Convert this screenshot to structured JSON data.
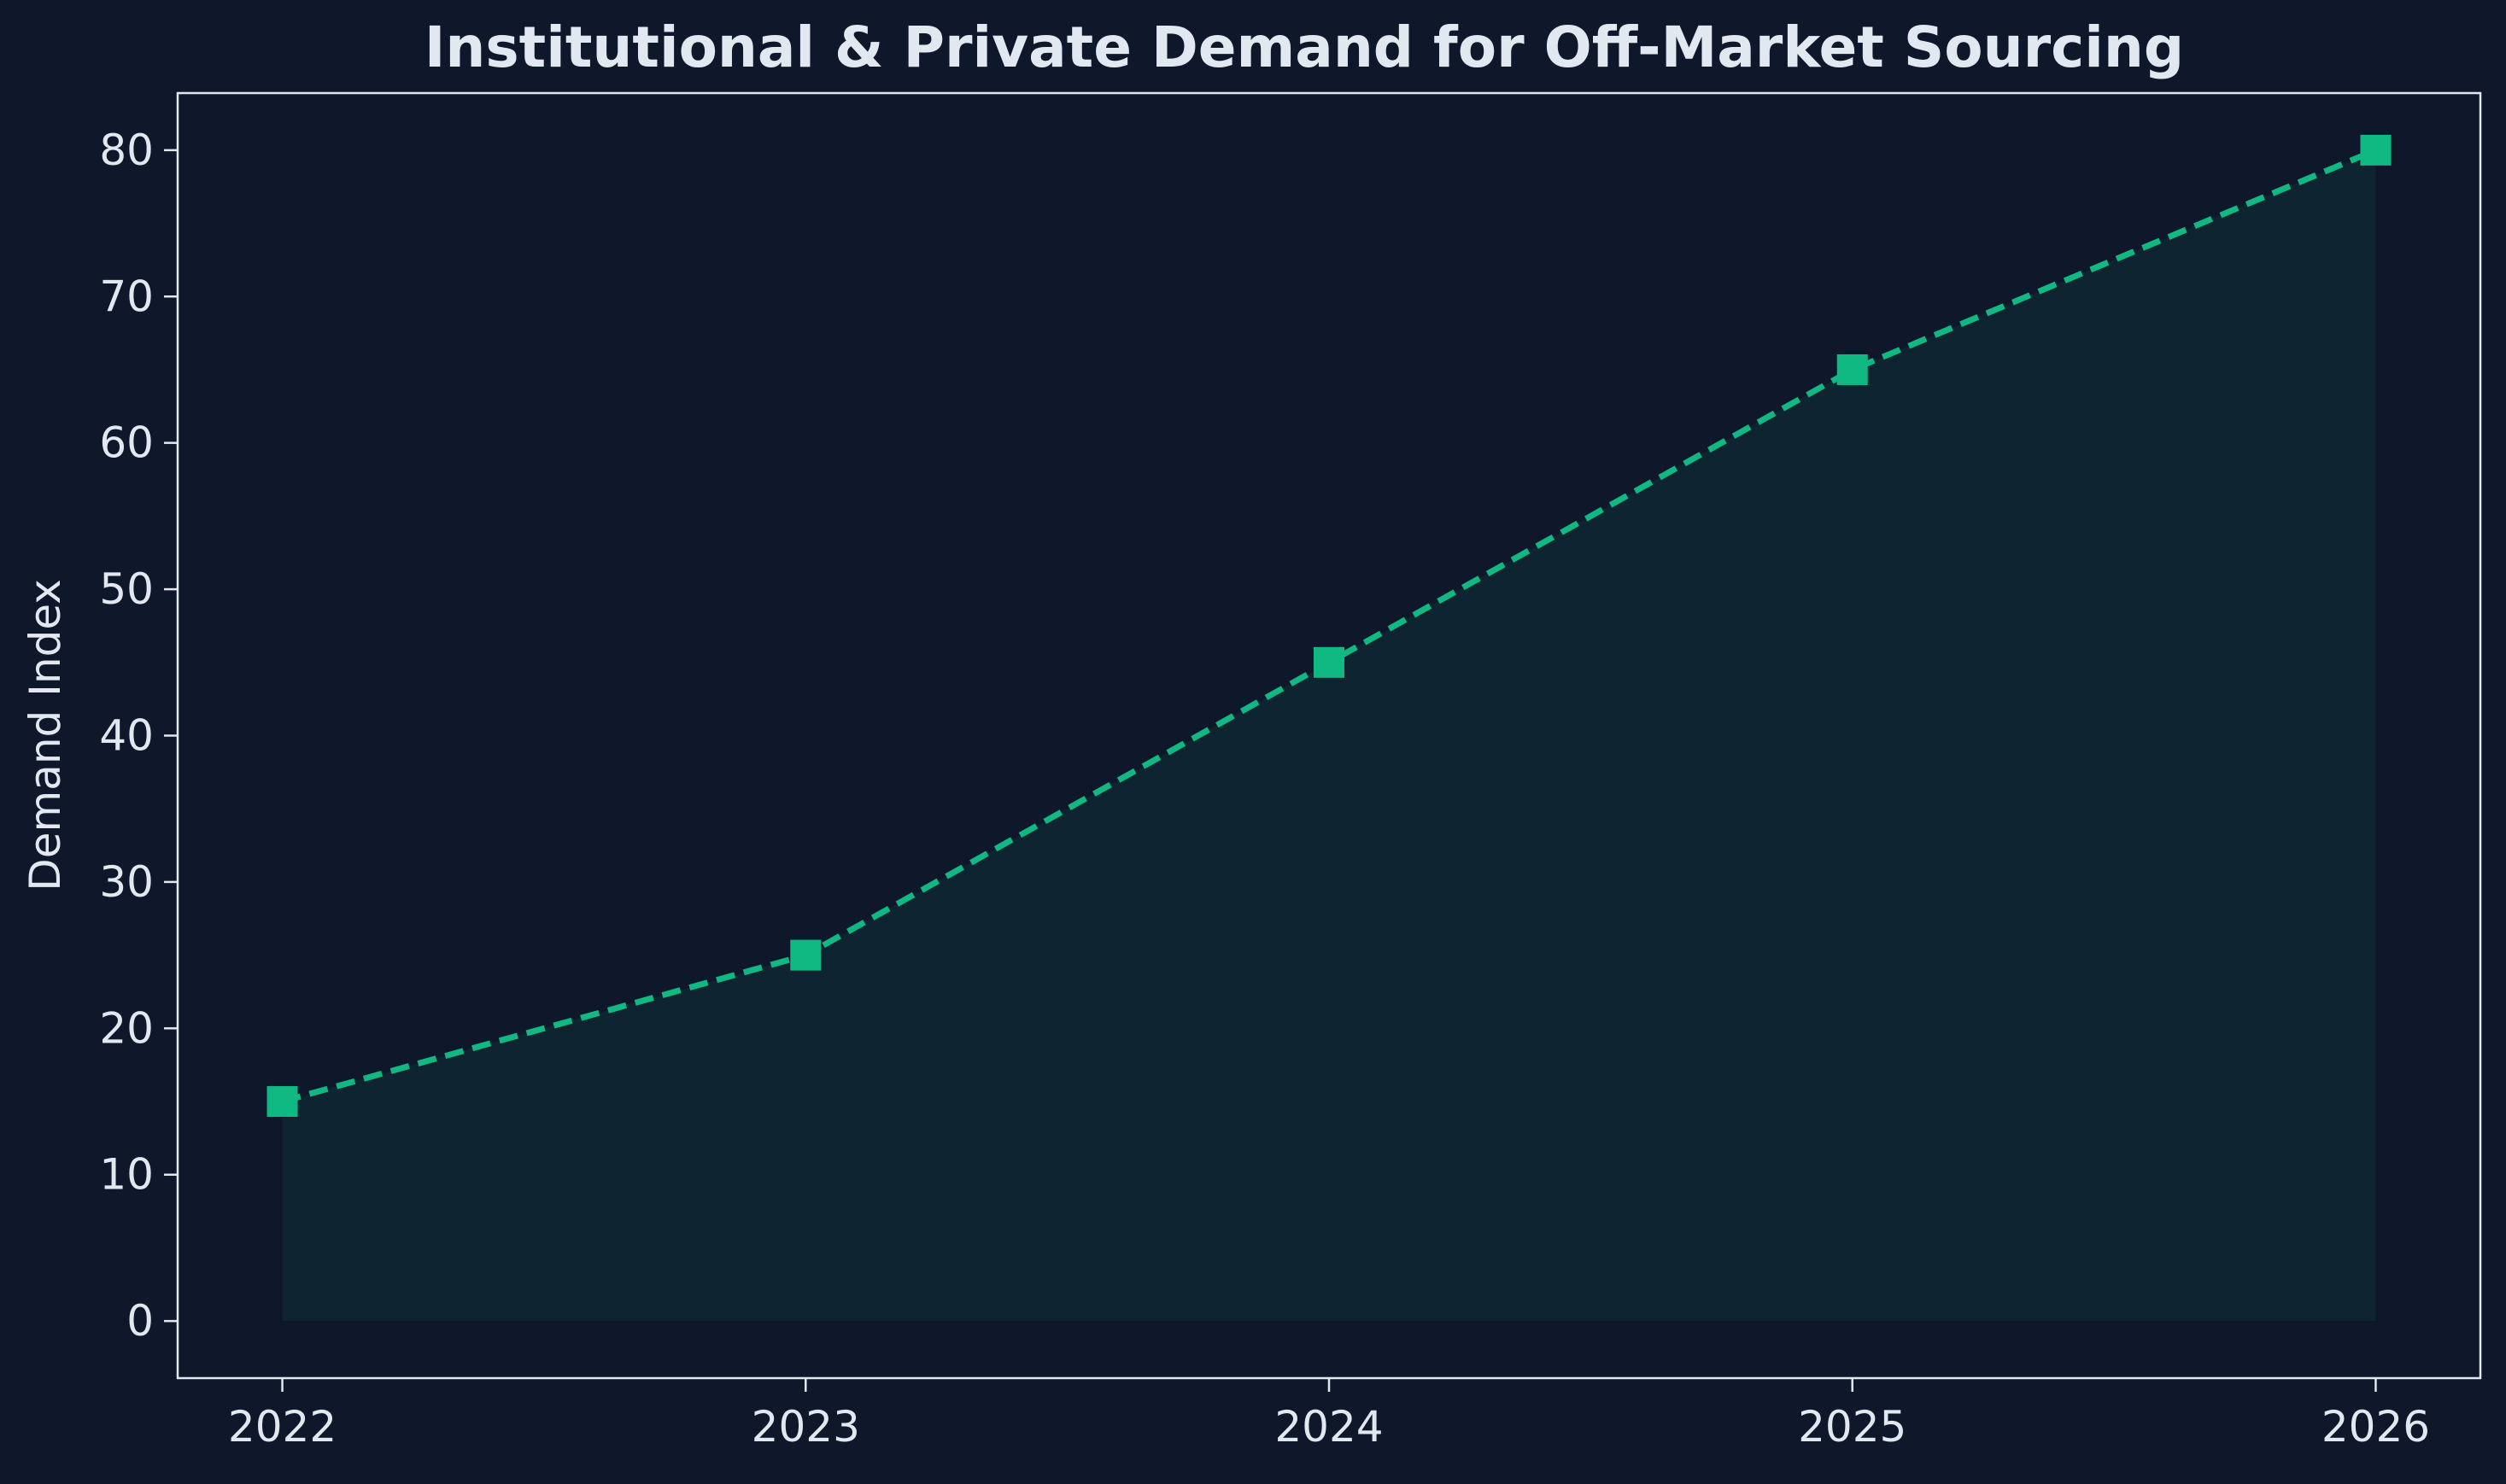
{
  "colors": {
    "background": "#0f172a",
    "plot_background": "#0f172a",
    "axis": "#e2e8f0",
    "text": "#e2e8f0",
    "line": "#10b981",
    "fill": "#10b981",
    "marker": "#10b981"
  },
  "chart_data": {
    "type": "line",
    "title": "Institutional & Private Demand for Off-Market Sourcing",
    "xlabel": "",
    "ylabel": "Demand Index",
    "categories": [
      "2022",
      "2023",
      "2024",
      "2025",
      "2026"
    ],
    "series": [
      {
        "values": [
          15,
          25,
          45,
          65,
          80
        ],
        "line_style": "dashed",
        "marker": "square",
        "area_fill": true
      }
    ],
    "xlim": [
      2021.8,
      2026.2
    ],
    "ylim": [
      -3.9,
      83.9
    ],
    "yticks": [
      0,
      10,
      20,
      30,
      40,
      50,
      60,
      70,
      80
    ],
    "xticks": [
      "2022",
      "2023",
      "2024",
      "2025",
      "2026"
    ],
    "grid": false,
    "legend": "none"
  }
}
